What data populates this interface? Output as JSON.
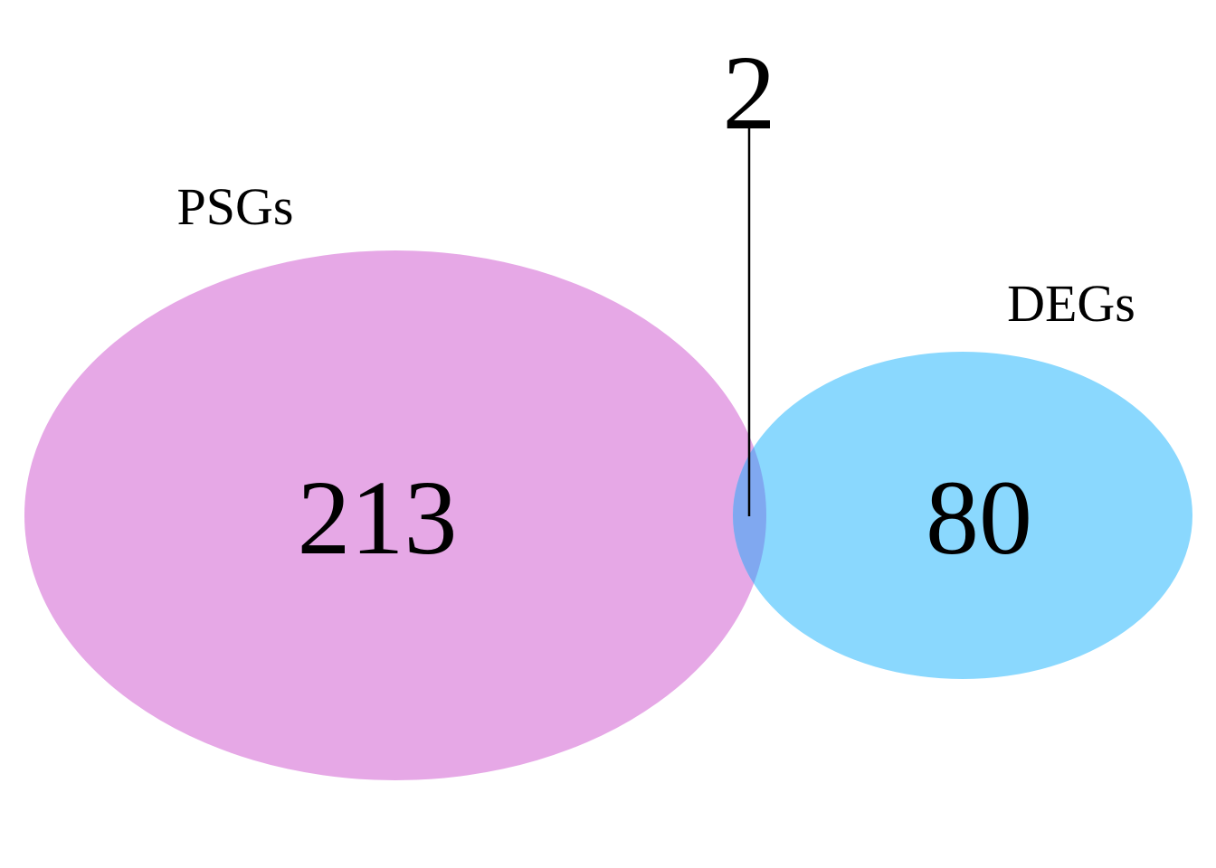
{
  "sets": [
    {
      "label": "PSGs",
      "count": "213",
      "color": "#E6A8E6"
    },
    {
      "label": "DEGs",
      "count": "80",
      "color": "#8AD8FE"
    }
  ],
  "intersection": {
    "count": "2",
    "color": "#80A8F0"
  }
}
